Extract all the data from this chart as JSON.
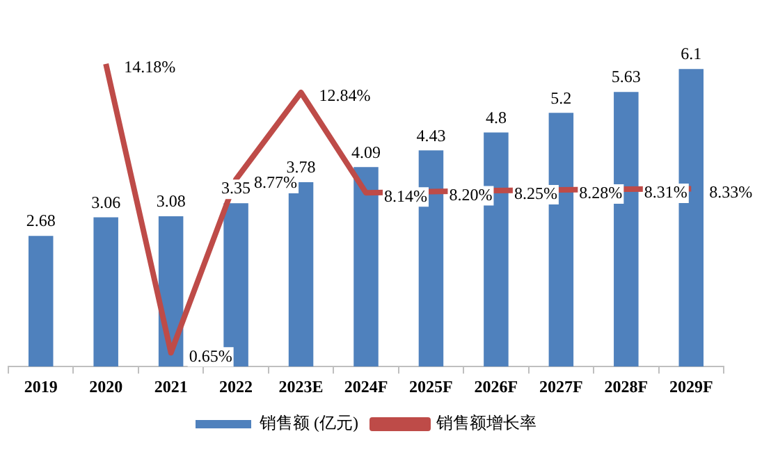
{
  "chart_data": {
    "type": "bar",
    "categories": [
      "2019",
      "2020",
      "2021",
      "2022",
      "2023E",
      "2024F",
      "2025F",
      "2026F",
      "2027F",
      "2028F",
      "2029F"
    ],
    "series": [
      {
        "name": "销售额 (亿元)",
        "color": "#4f81bd",
        "values": [
          2.68,
          3.06,
          3.08,
          3.35,
          3.78,
          4.09,
          4.43,
          4.8,
          5.2,
          5.63,
          6.1
        ],
        "value_labels": [
          "2.68",
          "3.06",
          "3.08",
          "3.35",
          "3.78",
          "4.09",
          "4.43",
          "4.8",
          "5.2",
          "5.63",
          "6.1"
        ]
      },
      {
        "name": "销售额增长率",
        "type": "line",
        "axis": "y2",
        "color": "#be4b48",
        "values": [
          null,
          14.18,
          0.65,
          8.77,
          12.84,
          8.14,
          8.2,
          8.25,
          8.28,
          8.31,
          8.33
        ],
        "value_labels": [
          null,
          "14.18%",
          "0.65%",
          "8.77%",
          "12.84%",
          "8.14%",
          "8.20%",
          "8.25%",
          "8.28%",
          "8.31%",
          "8.33%"
        ]
      }
    ],
    "tick_labels": "x",
    "grid": false,
    "legend": "bottom",
    "marker": "none",
    "line_style": "solid"
  }
}
